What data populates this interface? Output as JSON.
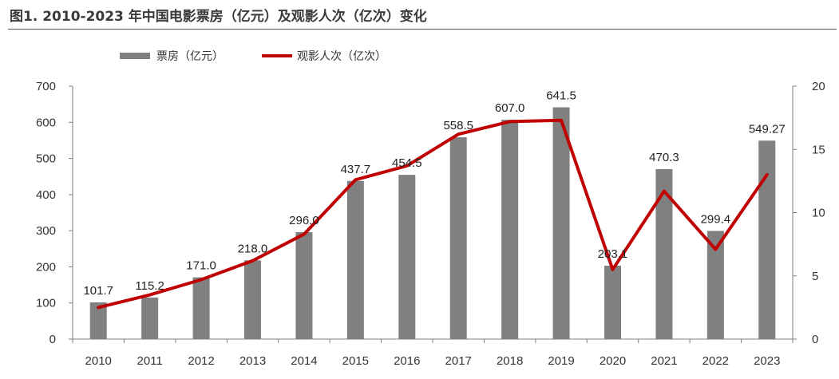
{
  "title": "图1. 2010-2023 年中国电影票房（亿元）及观影人次（亿次）变化",
  "chart_data": {
    "type": "bar+line",
    "categories": [
      "2010",
      "2011",
      "2012",
      "2013",
      "2014",
      "2015",
      "2016",
      "2017",
      "2018",
      "2019",
      "2020",
      "2021",
      "2022",
      "2023"
    ],
    "series": [
      {
        "name": "票房（亿元）",
        "type": "bar",
        "axis": "left",
        "color": "#808080",
        "values": [
          101.7,
          115.2,
          171.0,
          218.0,
          296.0,
          437.7,
          454.5,
          558.5,
          607.0,
          641.5,
          203.1,
          470.3,
          299.4,
          549.27
        ],
        "labels": [
          "101.7",
          "115.2",
          "171.0",
          "218.0",
          "296.0",
          "437.7",
          "454.5",
          "558.5",
          "607.0",
          "641.5",
          "203.1",
          "470.3",
          "299.4",
          "549.27"
        ]
      },
      {
        "name": "观影人次（亿次）",
        "type": "line",
        "axis": "right",
        "color": "#C00000",
        "values": [
          2.5,
          3.5,
          4.7,
          6.2,
          8.3,
          12.6,
          13.7,
          16.2,
          17.2,
          17.3,
          5.5,
          11.7,
          7.1,
          13.0
        ]
      }
    ],
    "y_left": {
      "ylim": [
        0,
        700
      ],
      "ticks": [
        "0",
        "100",
        "200",
        "300",
        "400",
        "500",
        "600",
        "700"
      ]
    },
    "y_right": {
      "ylim": [
        0,
        20
      ],
      "ticks": [
        "0",
        "5",
        "10",
        "15",
        "20"
      ]
    },
    "legend": "top-left",
    "grid": false
  }
}
